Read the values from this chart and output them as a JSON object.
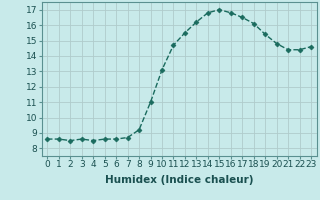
{
  "x": [
    0,
    1,
    2,
    3,
    4,
    5,
    6,
    7,
    8,
    9,
    10,
    11,
    12,
    13,
    14,
    15,
    16,
    17,
    18,
    19,
    20,
    21,
    22,
    23
  ],
  "y": [
    8.6,
    8.6,
    8.5,
    8.6,
    8.5,
    8.6,
    8.6,
    8.7,
    9.2,
    11.0,
    13.1,
    14.7,
    15.5,
    16.2,
    16.8,
    17.0,
    16.8,
    16.5,
    16.1,
    15.4,
    14.8,
    14.4,
    14.4,
    14.6
  ],
  "line_color": "#1a6b5e",
  "marker": "D",
  "marker_size": 2.5,
  "bg_color": "#c8eaea",
  "grid_color": "#b0cccc",
  "xlabel": "Humidex (Indice chaleur)",
  "xlim": [
    -0.5,
    23.5
  ],
  "ylim": [
    7.5,
    17.5
  ],
  "yticks": [
    8,
    9,
    10,
    11,
    12,
    13,
    14,
    15,
    16,
    17
  ],
  "xticks": [
    0,
    1,
    2,
    3,
    4,
    5,
    6,
    7,
    8,
    9,
    10,
    11,
    12,
    13,
    14,
    15,
    16,
    17,
    18,
    19,
    20,
    21,
    22,
    23
  ],
  "xlabel_fontsize": 7.5,
  "tick_fontsize": 6.5
}
